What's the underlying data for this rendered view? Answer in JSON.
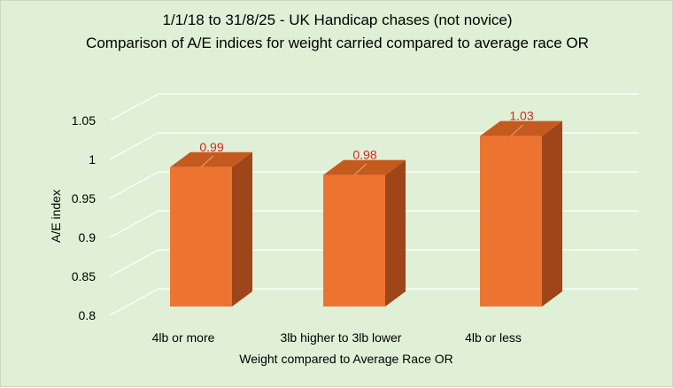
{
  "chart_data": {
    "type": "bar",
    "title_lines": [
      "1/1/18 to 31/8/25 - UK Handicap chases (not novice)",
      "Comparison of A/E indices for weight carried compared to average race OR"
    ],
    "categories": [
      "4lb or more",
      "3lb higher to 3lb lower",
      "4lb or less"
    ],
    "values": [
      0.99,
      0.98,
      1.03
    ],
    "data_labels": [
      "0.99",
      "0.98",
      "1.03"
    ],
    "xlabel": "Weight compared to Average Race OR",
    "ylabel": "A/E index",
    "ylim": [
      0.8,
      1.05
    ],
    "yticks": [
      0.8,
      0.85,
      0.9,
      0.95,
      1.0,
      1.05
    ],
    "ytick_labels": [
      "0.8",
      "0.85",
      "0.9",
      "0.95",
      "1",
      "1.05"
    ],
    "grid": true,
    "style": "3d",
    "colors": {
      "background": "#dff0d6",
      "bar_front": "#ed7330",
      "bar_top": "#c55a1e",
      "bar_side": "#9e4519",
      "grid": "#ffffff",
      "data_label": "#e0201b"
    }
  }
}
